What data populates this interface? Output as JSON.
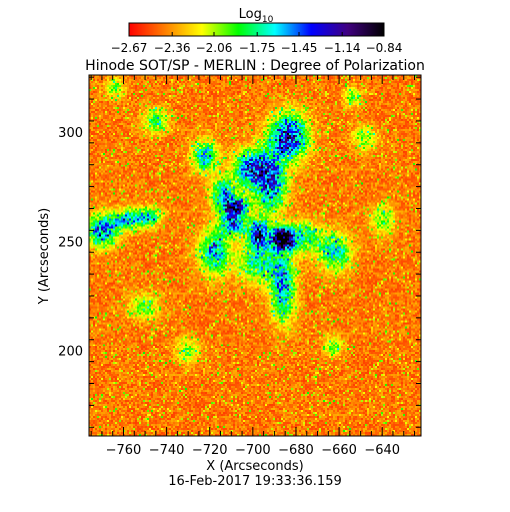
{
  "chart_data": {
    "type": "heatmap",
    "title": "Hinode SOT/SP - MERLIN : Degree of Polarization",
    "xlabel": "X (Arcseconds)",
    "ylabel": "Y (Arcseconds)",
    "date_label": "16-Feb-2017 19:33:36.159",
    "xlim": [
      -776,
      -622
    ],
    "ylim": [
      161,
      326
    ],
    "x_ticks": [
      -760,
      -740,
      -720,
      -700,
      -680,
      -660,
      -640
    ],
    "y_ticks": [
      200,
      250,
      300
    ],
    "x_tick_labels": [
      "−760",
      "−740",
      "−720",
      "−700",
      "−680",
      "−660",
      "−640"
    ],
    "y_tick_labels": [
      "200",
      "250",
      "300"
    ],
    "colorbar": {
      "label_main": "Log",
      "label_sub": "10",
      "range": [
        -2.67,
        -0.84
      ],
      "ticks": [
        -2.67,
        -2.36,
        -2.06,
        -1.75,
        -1.45,
        -1.14,
        -0.84
      ],
      "tick_labels": [
        "−2.67",
        "−2.36",
        "−2.06",
        "−1.75",
        "−1.45",
        "−1.14",
        "−0.84"
      ],
      "colors": [
        "#ff0000",
        "#ff8000",
        "#ffff00",
        "#00ff00",
        "#00ffff",
        "#0000ff",
        "#400080",
        "#000000"
      ]
    },
    "blobs": [
      {
        "x": -686,
        "y": 251,
        "sx": 3.5,
        "sy": 3.5,
        "a": 1.15
      },
      {
        "x": -697,
        "y": 253,
        "sx": 3.5,
        "sy": 4.5,
        "a": 0.75
      },
      {
        "x": -709,
        "y": 258,
        "sx": 4.5,
        "sy": 3.5,
        "a": 0.65
      },
      {
        "x": -692,
        "y": 278,
        "sx": 5,
        "sy": 10,
        "a": 0.7
      },
      {
        "x": -683,
        "y": 298,
        "sx": 6,
        "sy": 7,
        "a": 0.75
      },
      {
        "x": -702,
        "y": 283,
        "sx": 5,
        "sy": 6,
        "a": 0.6
      },
      {
        "x": -714,
        "y": 272,
        "sx": 4,
        "sy": 5,
        "a": 0.5
      },
      {
        "x": -722,
        "y": 289,
        "sx": 4,
        "sy": 5,
        "a": 0.55
      },
      {
        "x": -770,
        "y": 255,
        "sx": 5,
        "sy": 5,
        "a": 0.65
      },
      {
        "x": -758,
        "y": 260,
        "sx": 5,
        "sy": 3,
        "a": 0.5
      },
      {
        "x": -748,
        "y": 261,
        "sx": 4,
        "sy": 3,
        "a": 0.45
      },
      {
        "x": -718,
        "y": 245,
        "sx": 5,
        "sy": 7,
        "a": 0.55
      },
      {
        "x": -686,
        "y": 228,
        "sx": 4,
        "sy": 10,
        "a": 0.55
      },
      {
        "x": -662,
        "y": 245,
        "sx": 5,
        "sy": 6,
        "a": 0.5
      },
      {
        "x": -697,
        "y": 240,
        "sx": 7,
        "sy": 6,
        "a": 0.45
      },
      {
        "x": -676,
        "y": 252,
        "sx": 5,
        "sy": 5,
        "a": 0.4
      },
      {
        "x": -745,
        "y": 305,
        "sx": 4,
        "sy": 4,
        "a": 0.35
      },
      {
        "x": -648,
        "y": 297,
        "sx": 4,
        "sy": 4,
        "a": 0.3
      },
      {
        "x": -750,
        "y": 220,
        "sx": 5,
        "sy": 4,
        "a": 0.3
      },
      {
        "x": -730,
        "y": 200,
        "sx": 4,
        "sy": 4,
        "a": 0.3
      },
      {
        "x": -663,
        "y": 202,
        "sx": 3,
        "sy": 3,
        "a": 0.35
      },
      {
        "x": -640,
        "y": 260,
        "sx": 4,
        "sy": 5,
        "a": 0.3
      },
      {
        "x": -654,
        "y": 316,
        "sx": 3,
        "sy": 3,
        "a": 0.3
      },
      {
        "x": -764,
        "y": 320,
        "sx": 3,
        "sy": 3,
        "a": 0.3
      },
      {
        "x": -708,
        "y": 266,
        "sx": 4,
        "sy": 3,
        "a": 0.75
      }
    ]
  }
}
